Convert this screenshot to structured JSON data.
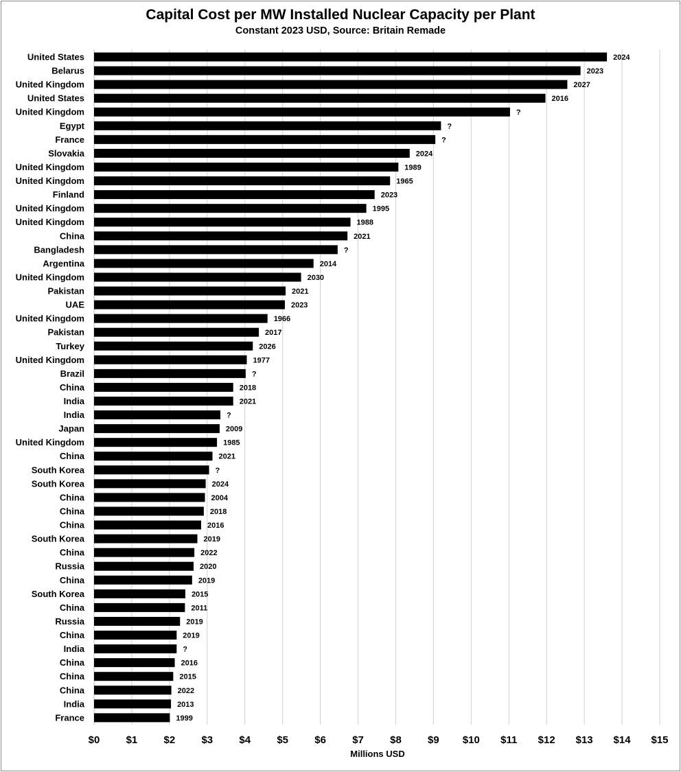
{
  "chart_data": {
    "type": "bar",
    "orientation": "horizontal",
    "title": "Capital Cost per MW Installed Nuclear Capacity per Plant",
    "subtitle": "Constant 2023 USD, Source: Britain Remade",
    "xlabel": "Millions USD",
    "ylabel": "",
    "xlim": [
      0,
      15
    ],
    "x_tick_labels": [
      "$0",
      "$1",
      "$2",
      "$3",
      "$4",
      "$5",
      "$6",
      "$7",
      "$8",
      "$9",
      "$10",
      "$11",
      "$12",
      "$13",
      "$14",
      "$15"
    ],
    "grid": "vertical",
    "bar_color": "#000000",
    "categories": [
      "United States",
      "Belarus",
      "United Kingdom",
      "United States",
      "United Kingdom",
      "Egypt",
      "France",
      "Slovakia",
      "United Kingdom",
      "United Kingdom",
      "Finland",
      "United Kingdom",
      "United Kingdom",
      "China",
      "Bangladesh",
      "Argentina",
      "United Kingdom",
      "Pakistan",
      "UAE",
      "United Kingdom",
      "Pakistan",
      "Turkey",
      "United Kingdom",
      "Brazil",
      "China",
      "India",
      "India",
      "Japan",
      "United Kingdom",
      "China",
      "South Korea",
      "South Korea",
      "China",
      "China",
      "China",
      "South Korea",
      "China",
      "Russia",
      "China",
      "South Korea",
      "China",
      "Russia",
      "China",
      "India",
      "China",
      "China",
      "China",
      "India",
      "France"
    ],
    "values": [
      13.6,
      12.9,
      12.55,
      11.97,
      11.03,
      9.2,
      9.05,
      8.37,
      8.07,
      7.85,
      7.44,
      7.22,
      6.8,
      6.72,
      6.46,
      5.82,
      5.49,
      5.08,
      5.06,
      4.6,
      4.37,
      4.21,
      4.05,
      4.02,
      3.69,
      3.69,
      3.35,
      3.33,
      3.26,
      3.14,
      3.05,
      2.96,
      2.94,
      2.91,
      2.84,
      2.74,
      2.66,
      2.64,
      2.6,
      2.42,
      2.41,
      2.28,
      2.19,
      2.19,
      2.14,
      2.1,
      2.05,
      2.04,
      2.01
    ],
    "data_labels": [
      "2024",
      "2023",
      "2027",
      "2016",
      "?",
      "?",
      "?",
      "2024",
      "1989",
      "1965",
      "2023",
      "1995",
      "1988",
      "2021",
      "?",
      "2014",
      "2030",
      "2021",
      "2023",
      "1966",
      "2017",
      "2026",
      "1977",
      "?",
      "2018",
      "2021",
      "?",
      "2009",
      "1985",
      "2021",
      "?",
      "2024",
      "2004",
      "2018",
      "2016",
      "2019",
      "2022",
      "2020",
      "2019",
      "2015",
      "2011",
      "2019",
      "2019",
      "?",
      "2016",
      "2015",
      "2022",
      "2013",
      "1999"
    ]
  }
}
